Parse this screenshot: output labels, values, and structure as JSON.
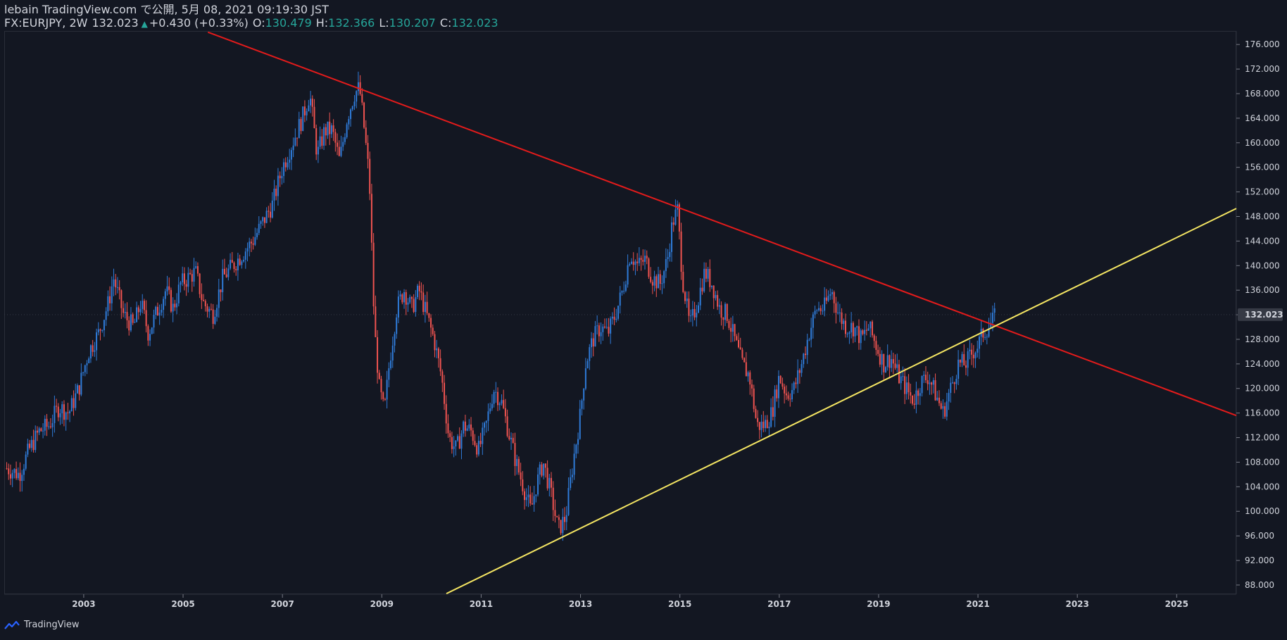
{
  "header": {
    "publisher": "lebain TradingView.com で公開, 5月 08, 2021 09:19:30 JST",
    "symbol": "FX:EURJPY, 2W",
    "last": "132.023",
    "change": "+0.430 (+0.33%)",
    "open_label": "O:",
    "open": "130.479",
    "high_label": "H:",
    "high": "132.366",
    "low_label": "L:",
    "low": "130.207",
    "close_label": "C:",
    "close": "132.023"
  },
  "footer": {
    "brand": "TradingView"
  },
  "colors": {
    "background": "#131722",
    "up": "#2f7bd8",
    "down": "#ef5350",
    "trend_down": "#e31b1b",
    "trend_up": "#f5e663",
    "price_tag": "#363a45",
    "up_value": "#26a69a"
  },
  "chart_data": {
    "type": "candlestick",
    "x_range": [
      2001.4,
      2026.2
    ],
    "y_range": [
      86.5,
      178.2
    ],
    "current_price": 132.023,
    "price_label": "132.023",
    "y_ticks": [
      "88.000",
      "92.000",
      "96.000",
      "100.000",
      "104.000",
      "108.000",
      "112.000",
      "116.000",
      "120.000",
      "124.000",
      "128.000",
      "132.000",
      "136.000",
      "140.000",
      "144.000",
      "148.000",
      "152.000",
      "156.000",
      "160.000",
      "164.000",
      "168.000",
      "172.000",
      "176.000"
    ],
    "y_tick_values": [
      88,
      92,
      96,
      100,
      104,
      108,
      112,
      116,
      120,
      124,
      128,
      132,
      136,
      140,
      144,
      148,
      152,
      156,
      160,
      164,
      168,
      172,
      176
    ],
    "x_ticks": [
      "2003",
      "2005",
      "2007",
      "2009",
      "2011",
      "2013",
      "2015",
      "2017",
      "2019",
      "2021",
      "2023",
      "2025"
    ],
    "x_tick_values": [
      2003,
      2005,
      2007,
      2009,
      2011,
      2013,
      2015,
      2017,
      2019,
      2021,
      2023,
      2025
    ],
    "price_path": [
      [
        2001.45,
        107
      ],
      [
        2001.7,
        106
      ],
      [
        2001.9,
        110
      ],
      [
        2002.1,
        113
      ],
      [
        2002.3,
        114
      ],
      [
        2002.5,
        117
      ],
      [
        2002.7,
        116
      ],
      [
        2002.9,
        120
      ],
      [
        2003.1,
        126
      ],
      [
        2003.3,
        129
      ],
      [
        2003.5,
        134
      ],
      [
        2003.6,
        138
      ],
      [
        2003.8,
        132
      ],
      [
        2004.0,
        130
      ],
      [
        2004.15,
        134
      ],
      [
        2004.3,
        129
      ],
      [
        2004.5,
        133
      ],
      [
        2004.65,
        136
      ],
      [
        2004.8,
        133
      ],
      [
        2004.95,
        137
      ],
      [
        2005.1,
        138
      ],
      [
        2005.25,
        139
      ],
      [
        2005.4,
        134
      ],
      [
        2005.6,
        132
      ],
      [
        2005.8,
        138
      ],
      [
        2006.0,
        140
      ],
      [
        2006.2,
        142
      ],
      [
        2006.4,
        144
      ],
      [
        2006.6,
        147
      ],
      [
        2006.8,
        150
      ],
      [
        2007.0,
        156
      ],
      [
        2007.2,
        160
      ],
      [
        2007.4,
        164
      ],
      [
        2007.55,
        168
      ],
      [
        2007.7,
        158
      ],
      [
        2007.85,
        162
      ],
      [
        2008.0,
        162
      ],
      [
        2008.15,
        157
      ],
      [
        2008.3,
        164
      ],
      [
        2008.45,
        168
      ],
      [
        2008.55,
        169
      ],
      [
        2008.65,
        162
      ],
      [
        2008.75,
        154
      ],
      [
        2008.85,
        130
      ],
      [
        2008.95,
        120
      ],
      [
        2009.05,
        116
      ],
      [
        2009.15,
        124
      ],
      [
        2009.3,
        133
      ],
      [
        2009.45,
        136
      ],
      [
        2009.6,
        133
      ],
      [
        2009.75,
        136
      ],
      [
        2009.9,
        132
      ],
      [
        2010.05,
        128
      ],
      [
        2010.2,
        122
      ],
      [
        2010.35,
        112
      ],
      [
        2010.5,
        110
      ],
      [
        2010.65,
        114
      ],
      [
        2010.8,
        113
      ],
      [
        2010.95,
        110
      ],
      [
        2011.1,
        114
      ],
      [
        2011.25,
        120
      ],
      [
        2011.4,
        118
      ],
      [
        2011.55,
        113
      ],
      [
        2011.7,
        108
      ],
      [
        2011.85,
        104
      ],
      [
        2012.0,
        100
      ],
      [
        2012.1,
        104
      ],
      [
        2012.25,
        108
      ],
      [
        2012.4,
        103
      ],
      [
        2012.55,
        97
      ],
      [
        2012.7,
        99
      ],
      [
        2012.85,
        108
      ],
      [
        2013.0,
        116
      ],
      [
        2013.1,
        124
      ],
      [
        2013.25,
        128
      ],
      [
        2013.4,
        130
      ],
      [
        2013.55,
        129
      ],
      [
        2013.7,
        132
      ],
      [
        2013.85,
        136
      ],
      [
        2014.0,
        142
      ],
      [
        2014.15,
        140
      ],
      [
        2014.3,
        141
      ],
      [
        2014.45,
        138
      ],
      [
        2014.6,
        137
      ],
      [
        2014.75,
        141
      ],
      [
        2014.85,
        147
      ],
      [
        2014.95,
        149
      ],
      [
        2015.05,
        138
      ],
      [
        2015.2,
        130
      ],
      [
        2015.35,
        134
      ],
      [
        2015.5,
        139
      ],
      [
        2015.65,
        137
      ],
      [
        2015.8,
        133
      ],
      [
        2015.95,
        132
      ],
      [
        2016.1,
        128
      ],
      [
        2016.25,
        124
      ],
      [
        2016.4,
        122
      ],
      [
        2016.55,
        114
      ],
      [
        2016.7,
        114
      ],
      [
        2016.85,
        116
      ],
      [
        2017.0,
        122
      ],
      [
        2017.15,
        119
      ],
      [
        2017.3,
        120
      ],
      [
        2017.45,
        124
      ],
      [
        2017.6,
        129
      ],
      [
        2017.75,
        133
      ],
      [
        2017.9,
        133
      ],
      [
        2018.05,
        136
      ],
      [
        2018.2,
        132
      ],
      [
        2018.35,
        130
      ],
      [
        2018.5,
        130
      ],
      [
        2018.65,
        128
      ],
      [
        2018.8,
        130
      ],
      [
        2018.95,
        127
      ],
      [
        2019.1,
        124
      ],
      [
        2019.25,
        125
      ],
      [
        2019.4,
        122
      ],
      [
        2019.55,
        120
      ],
      [
        2019.7,
        118
      ],
      [
        2019.85,
        121
      ],
      [
        2020.0,
        122
      ],
      [
        2020.15,
        119
      ],
      [
        2020.3,
        116
      ],
      [
        2020.45,
        120
      ],
      [
        2020.6,
        124
      ],
      [
        2020.75,
        124
      ],
      [
        2020.9,
        126
      ],
      [
        2021.0,
        127
      ],
      [
        2021.1,
        129
      ],
      [
        2021.2,
        130
      ],
      [
        2021.3,
        131
      ],
      [
        2021.37,
        132
      ]
    ],
    "trendlines": [
      {
        "color_key": "trend_down",
        "from": [
          2005.5,
          178.0
        ],
        "to": [
          2026.2,
          115.6
        ]
      },
      {
        "color_key": "trend_up",
        "from": [
          2010.3,
          86.6
        ],
        "to": [
          2026.2,
          149.3
        ]
      }
    ]
  }
}
